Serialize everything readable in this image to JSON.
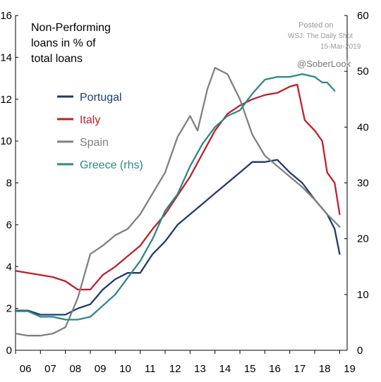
{
  "chart_data": {
    "type": "line",
    "title_lines": [
      "Non-Performing",
      "loans in % of",
      "total loans"
    ],
    "source_lines": [
      "Posted on",
      "WSJ: The Daily Shot",
      "15-Mar-2019"
    ],
    "handle": "@SoberLook",
    "x_ticks": [
      "06",
      "07",
      "08",
      "09",
      "10",
      "11",
      "12",
      "13",
      "14",
      "15",
      "16",
      "17",
      "18",
      "19"
    ],
    "x_range": [
      2006,
      2019.3
    ],
    "y_left": {
      "ticks": [
        "0",
        "2",
        "4",
        "6",
        "8",
        "10",
        "12",
        "14",
        "16"
      ],
      "range": [
        0,
        16
      ]
    },
    "y_right": {
      "ticks": [
        "0",
        "10",
        "20",
        "30",
        "40",
        "50",
        "60"
      ],
      "range": [
        0,
        60
      ]
    },
    "grid": false,
    "legend_placement": "upper-left",
    "series": [
      {
        "name": "Portugal",
        "axis": "left",
        "color": "#1f3a6e",
        "x": [
          2006.0,
          2006.5,
          2007.0,
          2007.5,
          2008.0,
          2008.5,
          2009.0,
          2009.5,
          2010.0,
          2010.5,
          2011.0,
          2011.5,
          2012.0,
          2012.5,
          2013.0,
          2013.5,
          2014.0,
          2014.5,
          2015.0,
          2015.5,
          2016.0,
          2016.5,
          2017.0,
          2017.5,
          2018.0,
          2018.5,
          2018.8,
          2019.0
        ],
        "y": [
          1.9,
          1.9,
          1.7,
          1.7,
          1.7,
          2.0,
          2.2,
          2.9,
          3.4,
          3.7,
          3.7,
          4.6,
          5.2,
          6.0,
          6.5,
          7.0,
          7.5,
          8.0,
          8.5,
          9.0,
          9.0,
          9.1,
          8.5,
          8.0,
          7.2,
          6.5,
          5.8,
          4.6
        ]
      },
      {
        "name": "Italy",
        "axis": "left",
        "color": "#c0202a",
        "x": [
          2006.0,
          2006.5,
          2007.0,
          2007.5,
          2008.0,
          2008.5,
          2009.0,
          2009.5,
          2010.0,
          2010.5,
          2011.0,
          2011.5,
          2012.0,
          2012.5,
          2013.0,
          2013.5,
          2014.0,
          2014.5,
          2015.0,
          2015.5,
          2016.0,
          2016.5,
          2017.0,
          2017.3,
          2017.6,
          2018.0,
          2018.3,
          2018.5,
          2018.8,
          2019.0
        ],
        "y": [
          3.8,
          3.7,
          3.6,
          3.5,
          3.3,
          2.9,
          2.9,
          3.6,
          4.0,
          4.5,
          5.0,
          5.8,
          6.5,
          7.4,
          8.3,
          9.4,
          10.5,
          11.3,
          11.7,
          12.0,
          12.2,
          12.3,
          12.6,
          12.7,
          11.0,
          10.5,
          10.0,
          8.5,
          8.0,
          6.5
        ]
      },
      {
        "name": "Spain",
        "axis": "left",
        "color": "#808080",
        "x": [
          2006.0,
          2006.5,
          2007.0,
          2007.5,
          2008.0,
          2008.5,
          2009.0,
          2009.5,
          2010.0,
          2010.5,
          2011.0,
          2011.5,
          2012.0,
          2012.5,
          2013.0,
          2013.3,
          2013.7,
          2014.0,
          2014.5,
          2015.0,
          2015.5,
          2016.0,
          2016.5,
          2017.0,
          2017.5,
          2018.0,
          2018.5,
          2019.0
        ],
        "y": [
          0.8,
          0.7,
          0.7,
          0.8,
          1.1,
          2.5,
          4.6,
          5.0,
          5.5,
          5.8,
          6.5,
          7.5,
          8.5,
          10.2,
          11.2,
          10.5,
          12.5,
          13.5,
          13.2,
          12.0,
          10.3,
          9.3,
          8.8,
          8.3,
          7.8,
          7.2,
          6.5,
          5.9
        ]
      },
      {
        "name": "Greece (rhs)",
        "axis": "right",
        "color": "#2a8a88",
        "x": [
          2006.0,
          2006.5,
          2007.0,
          2007.5,
          2008.0,
          2008.5,
          2009.0,
          2009.5,
          2010.0,
          2010.5,
          2011.0,
          2011.5,
          2012.0,
          2012.5,
          2013.0,
          2013.5,
          2014.0,
          2014.5,
          2015.0,
          2015.5,
          2016.0,
          2016.5,
          2017.0,
          2017.5,
          2018.0,
          2018.3,
          2018.5,
          2018.8
        ],
        "y": [
          7,
          7,
          6,
          6,
          5.5,
          5.5,
          6,
          8,
          10,
          13,
          16,
          20,
          25,
          28,
          33,
          37,
          40,
          42,
          43,
          46,
          48.5,
          49,
          49,
          49.5,
          49,
          48,
          48,
          46.5
        ]
      }
    ]
  }
}
